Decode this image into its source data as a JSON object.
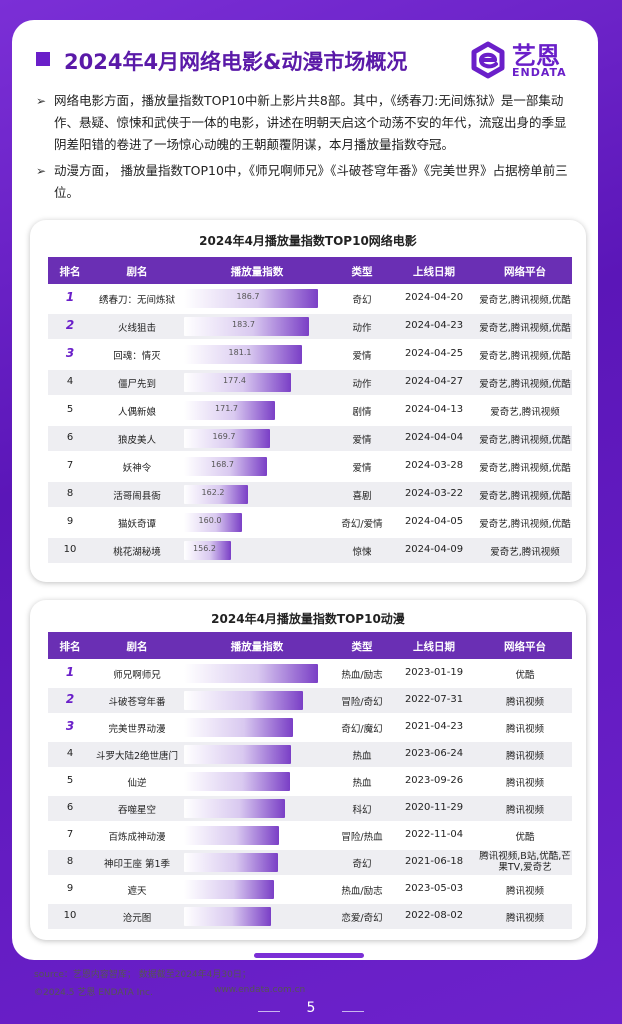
{
  "header": {
    "title": "2024年4月网络电影&动漫市场概况",
    "logo_cn": "艺恩",
    "logo_en": "ENDATA"
  },
  "bullets": [
    "网络电影方面，播放量指数TOP10中新上影片共8部。其中，《绣春刀:无间炼狱》是一部集动作、悬疑、惊悚和武侠于一体的电影，讲述在明朝天启这个动荡不安的年代，流寇出身的季显阴差阳错的卷进了一场惊心动魄的王朝颠覆阴谋，本月播放量指数夺冠。",
    "动漫方面， 播放量指数TOP10中，《师兄啊师兄》《斗破苍穹年番》《完美世界》占据榜单前三位。"
  ],
  "table_columns": [
    "排名",
    "剧名",
    "播放量指数",
    "类型",
    "上线日期",
    "网络平台"
  ],
  "movies": {
    "title": "2024年4月播放量指数TOP10网络电影",
    "rows": [
      {
        "rank": "1",
        "name": "绣春刀：无间炼狱",
        "value": 186.7,
        "value_label": "186.7",
        "genre": "奇幻",
        "date": "2024-04-20",
        "platform": "爱奇艺,腾讯视频,优酷"
      },
      {
        "rank": "2",
        "name": "火线狙击",
        "value": 183.7,
        "value_label": "183.7",
        "genre": "动作",
        "date": "2024-04-23",
        "platform": "爱奇艺,腾讯视频,优酷"
      },
      {
        "rank": "3",
        "name": "回魂：情灭",
        "value": 181.1,
        "value_label": "181.1",
        "genre": "爱情",
        "date": "2024-04-25",
        "platform": "爱奇艺,腾讯视频,优酷"
      },
      {
        "rank": "4",
        "name": "僵尸先到",
        "value": 177.4,
        "value_label": "177.4",
        "genre": "动作",
        "date": "2024-04-27",
        "platform": "爱奇艺,腾讯视频,优酷"
      },
      {
        "rank": "5",
        "name": "人偶新娘",
        "value": 171.7,
        "value_label": "171.7",
        "genre": "剧情",
        "date": "2024-04-13",
        "platform": "爱奇艺,腾讯视频"
      },
      {
        "rank": "6",
        "name": "狼皮美人",
        "value": 169.7,
        "value_label": "169.7",
        "genre": "爱情",
        "date": "2024-04-04",
        "platform": "爱奇艺,腾讯视频,优酷"
      },
      {
        "rank": "7",
        "name": "妖神令",
        "value": 168.7,
        "value_label": "168.7",
        "genre": "爱情",
        "date": "2024-03-28",
        "platform": "爱奇艺,腾讯视频,优酷"
      },
      {
        "rank": "8",
        "name": "活哥闹县衙",
        "value": 162.2,
        "value_label": "162.2",
        "genre": "喜剧",
        "date": "2024-03-22",
        "platform": "爱奇艺,腾讯视频,优酷"
      },
      {
        "rank": "9",
        "name": "猫妖奇谭",
        "value": 160.0,
        "value_label": "160.0",
        "genre": "奇幻/爱情",
        "date": "2024-04-05",
        "platform": "爱奇艺,腾讯视频,优酷"
      },
      {
        "rank": "10",
        "name": "桃花湖秘境",
        "value": 156.2,
        "value_label": "156.2",
        "genre": "惊悚",
        "date": "2024-04-09",
        "platform": "爱奇艺,腾讯视频"
      }
    ]
  },
  "anime": {
    "title": "2024年4月播放量指数TOP10动漫",
    "rows": [
      {
        "rank": "1",
        "name": "师兄啊师兄",
        "value": 1.0,
        "genre": "热血/励志",
        "date": "2023-01-19",
        "platform": "优酷"
      },
      {
        "rank": "2",
        "name": "斗破苍穹年番",
        "value": 0.89,
        "genre": "冒险/奇幻",
        "date": "2022-07-31",
        "platform": "腾讯视频"
      },
      {
        "rank": "3",
        "name": "完美世界动漫",
        "value": 0.81,
        "genre": "奇幻/魔幻",
        "date": "2021-04-23",
        "platform": "腾讯视频"
      },
      {
        "rank": "4",
        "name": "斗罗大陆2绝世唐门",
        "value": 0.8,
        "genre": "热血",
        "date": "2023-06-24",
        "platform": "腾讯视频"
      },
      {
        "rank": "5",
        "name": "仙逆",
        "value": 0.79,
        "genre": "热血",
        "date": "2023-09-26",
        "platform": "腾讯视频"
      },
      {
        "rank": "6",
        "name": "吞噬星空",
        "value": 0.75,
        "genre": "科幻",
        "date": "2020-11-29",
        "platform": "腾讯视频"
      },
      {
        "rank": "7",
        "name": "百炼成神动漫",
        "value": 0.71,
        "genre": "冒险/热血",
        "date": "2022-11-04",
        "platform": "优酷"
      },
      {
        "rank": "8",
        "name": "神印王座 第1季",
        "value": 0.7,
        "genre": "奇幻",
        "date": "2021-06-18",
        "platform": "腾讯视频,B站,优酷,芒果TV,爱奇艺"
      },
      {
        "rank": "9",
        "name": "遮天",
        "value": 0.67,
        "genre": "热血/励志",
        "date": "2023-05-03",
        "platform": "腾讯视频"
      },
      {
        "rank": "10",
        "name": "沧元图",
        "value": 0.65,
        "genre": "恋爱/奇幻",
        "date": "2022-08-02",
        "platform": "腾讯视频"
      }
    ]
  },
  "footer": {
    "source": "source：艺恩内容智库； 数据截至2024年4月30日；",
    "copyright": "©2024.5 艺恩 ENDATA Inc.",
    "website": "www.endata.com.cn",
    "page_number": "5"
  },
  "colors": {
    "accent": "#6a1fc9",
    "table_header": "#6a2fb4"
  }
}
